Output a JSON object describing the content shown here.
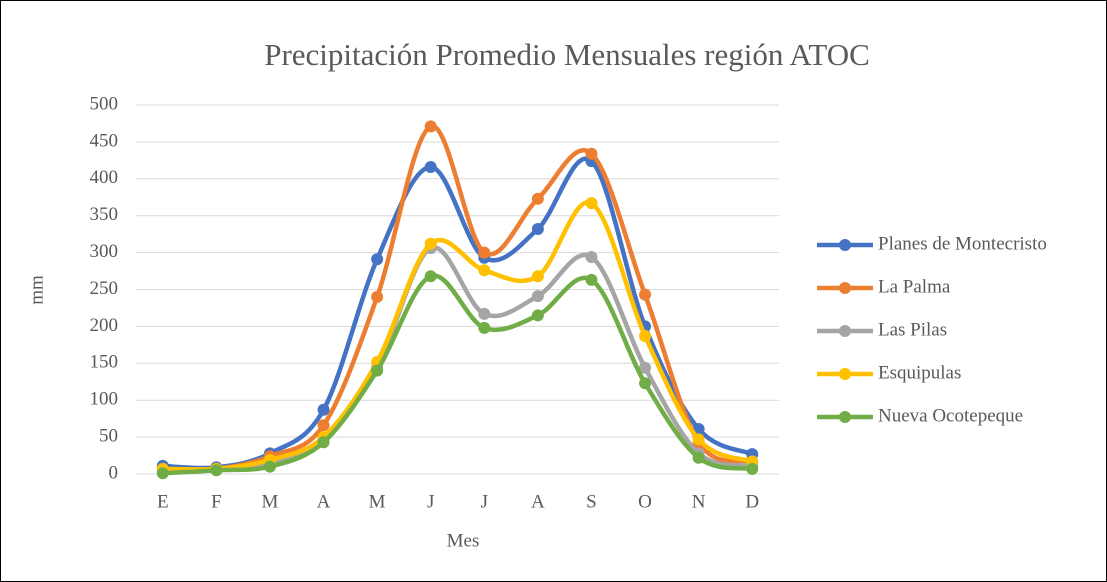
{
  "chart_data": {
    "type": "line",
    "title": "Precipitación Promedio Mensuales región ATOC",
    "x_label": "Mes",
    "y_label": "mm",
    "categories": [
      "E",
      "F",
      "M",
      "A",
      "M",
      "J",
      "J",
      "A",
      "S",
      "O",
      "N",
      "D"
    ],
    "series": [
      {
        "name": "Planes de Montecristo",
        "color": "#4472c4",
        "values": [
          11,
          9,
          28,
          87,
          291,
          416,
          293,
          332,
          424,
          200,
          61,
          27
        ]
      },
      {
        "name": "La Palma",
        "color": "#ed7d31",
        "values": [
          5,
          7,
          24,
          66,
          240,
          471,
          300,
          373,
          434,
          243,
          43,
          17
        ]
      },
      {
        "name": "Las Pilas",
        "color": "#a5a5a5",
        "values": [
          4,
          6,
          14,
          48,
          145,
          306,
          217,
          241,
          294,
          144,
          28,
          11
        ]
      },
      {
        "name": "Esquipulas",
        "color": "#ffc000",
        "values": [
          7,
          7,
          19,
          50,
          152,
          312,
          276,
          268,
          367,
          187,
          47,
          17
        ]
      },
      {
        "name": "Nueva Ocotepeque",
        "color": "#70ad47",
        "values": [
          1,
          5,
          10,
          43,
          140,
          268,
          198,
          215,
          263,
          123,
          22,
          7
        ]
      }
    ],
    "ylim": [
      0,
      500
    ],
    "yticks": [
      0,
      50,
      100,
      150,
      200,
      250,
      300,
      350,
      400,
      450,
      500
    ],
    "grid": true,
    "smooth": true,
    "legend": "right"
  }
}
